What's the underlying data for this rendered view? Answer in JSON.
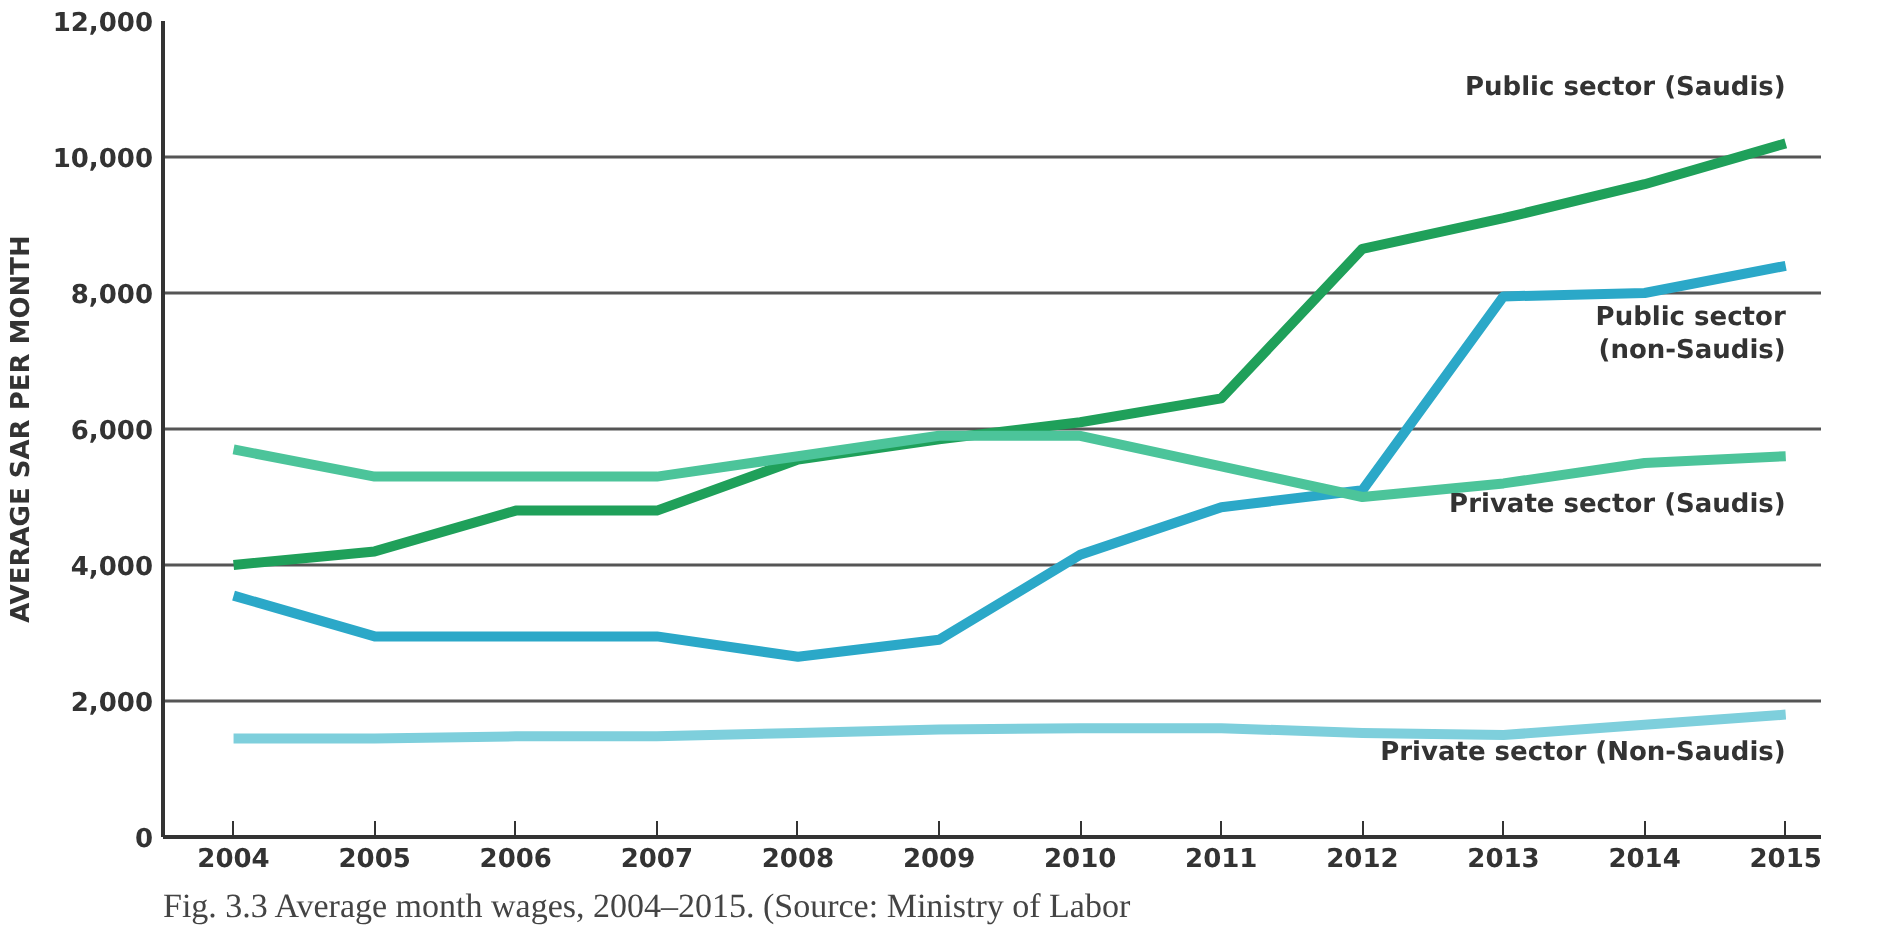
{
  "chart_data": {
    "type": "line",
    "ylabel": "AVERAGE SAR PER MONTH",
    "x": [
      2004,
      2005,
      2006,
      2007,
      2008,
      2009,
      2010,
      2011,
      2012,
      2013,
      2014,
      2015
    ],
    "series": [
      {
        "name": "Public sector (Saudis)",
        "color": "#1fa05a",
        "values": [
          4000,
          4200,
          4800,
          4800,
          5550,
          5850,
          6100,
          6450,
          8650,
          9100,
          9600,
          10200
        ]
      },
      {
        "name": "Public sector\n(non-Saudis)",
        "color": "#2ba8c8",
        "values": [
          3550,
          2950,
          2950,
          2950,
          2650,
          2900,
          4150,
          4850,
          5100,
          7950,
          8000,
          8400
        ]
      },
      {
        "name": "Private sector (Saudis)",
        "color": "#4cc49a",
        "values": [
          5700,
          5300,
          5300,
          5300,
          5600,
          5900,
          5900,
          5450,
          5000,
          5200,
          5500,
          5600
        ]
      },
      {
        "name": "Private sector (Non-Saudis)",
        "color": "#7ecfdc",
        "values": [
          1450,
          1450,
          1480,
          1480,
          1530,
          1580,
          1600,
          1600,
          1530,
          1500,
          1650,
          1800
        ]
      }
    ],
    "xlim": [
      2003.5,
      2015.25
    ],
    "ylim": [
      0,
      12000
    ],
    "xticks": [
      2004,
      2005,
      2006,
      2007,
      2008,
      2009,
      2010,
      2011,
      2012,
      2013,
      2014,
      2015
    ],
    "yticks": [
      0,
      {
        "value": 2000,
        "label": "2,000"
      },
      {
        "value": 4000,
        "label": "4,000"
      },
      {
        "value": 6000,
        "label": "6,000"
      },
      {
        "value": 8000,
        "label": "8,000"
      },
      {
        "value": 10000,
        "label": "10,000"
      },
      {
        "value": 12000,
        "label": "12,000"
      }
    ],
    "grid": "y",
    "marker": "none",
    "line_style": "solid",
    "annotations": [
      "Fig. 3.3  Average month wages, 2004–2015. (Source: Ministry of Labor"
    ]
  }
}
